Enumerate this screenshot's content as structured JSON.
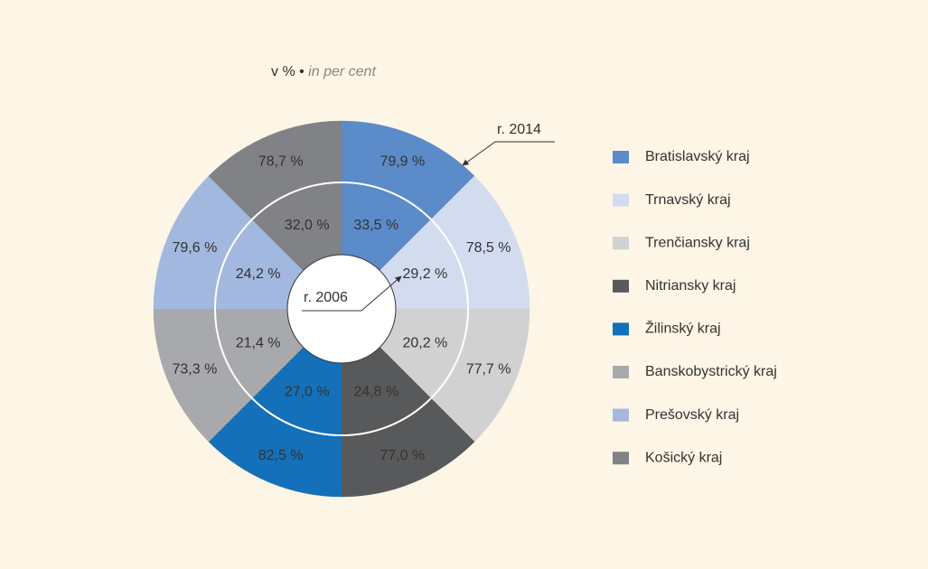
{
  "chart_data": {
    "type": "donut",
    "subtitle": "v % •",
    "subtitle_en": "in per cent",
    "categories": [
      "Bratislavský kraj",
      "Trnavský kraj",
      "Trenčiansky kraj",
      "Nitriansky kraj",
      "Žilinský kraj",
      "Banskobystrický kraj",
      "Prešovský kraj",
      "Košický kraj"
    ],
    "colors": [
      "#5b8bc9",
      "#d3dcef",
      "#d1d1d1",
      "#58595b",
      "#1470b8",
      "#a7a9ac",
      "#a3b8de",
      "#808285"
    ],
    "series": [
      {
        "name": "r. 2014",
        "values": [
          79.9,
          78.5,
          77.7,
          77.0,
          82.5,
          73.3,
          79.6,
          78.7
        ],
        "value_labels": [
          "79,9 %",
          "78,5 %",
          "77,7 %",
          "77,0 %",
          "82,5 %",
          "73,3 %",
          "79,6 %",
          "78,7 %"
        ]
      },
      {
        "name": "r. 2006",
        "values": [
          33.5,
          29.2,
          20.2,
          24.8,
          27.0,
          21.4,
          24.2,
          32.0
        ],
        "value_labels": [
          "33,5 %",
          "29,2 %",
          "20,2 %",
          "24,8 %",
          "27,0 %",
          "21,4 %",
          "24,2 %",
          "32,0 %"
        ]
      }
    ]
  }
}
